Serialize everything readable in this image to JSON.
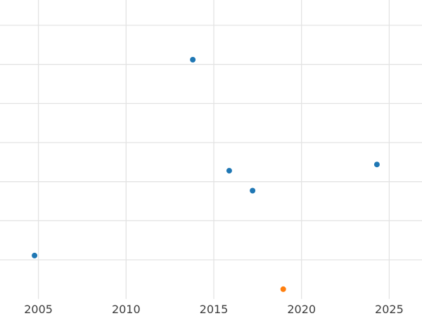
{
  "chart_data": {
    "type": "scatter",
    "title": "",
    "xlabel": "",
    "ylabel": "",
    "grid": true,
    "legend_position": "none",
    "x_ticks": [
      2005,
      2010,
      2015,
      2020,
      2025
    ],
    "x_tick_labels": [
      "2005",
      "2010",
      "2015",
      "2020",
      "2025"
    ],
    "y_axis_labels_visible": false,
    "y_gridline_units": [
      1,
      2,
      3,
      4,
      5,
      6,
      7
    ],
    "visible_xlim": [
      2002.81,
      2026.87
    ],
    "visible_ylim_units": [
      0,
      7.647
    ],
    "series": [
      {
        "name": "blue-series",
        "color": "#1f77b4",
        "marker": "circle",
        "marker_radius_px": 4,
        "points": [
          {
            "x": 2004.78,
            "y": 1.11
          },
          {
            "x": 2013.8,
            "y": 6.12
          },
          {
            "x": 2015.88,
            "y": 3.28
          },
          {
            "x": 2017.21,
            "y": 2.77
          },
          {
            "x": 2024.3,
            "y": 3.44
          }
        ]
      },
      {
        "name": "orange-series",
        "color": "#ff7f0e",
        "marker": "circle",
        "marker_radius_px": 4,
        "points": [
          {
            "x": 2018.96,
            "y": 0.25
          }
        ]
      }
    ],
    "colors": {
      "background": "#ffffff",
      "gridline": "#e3e3e3",
      "tick_label": "#3d3d3d"
    },
    "tick_label_font_size_px": 16
  }
}
